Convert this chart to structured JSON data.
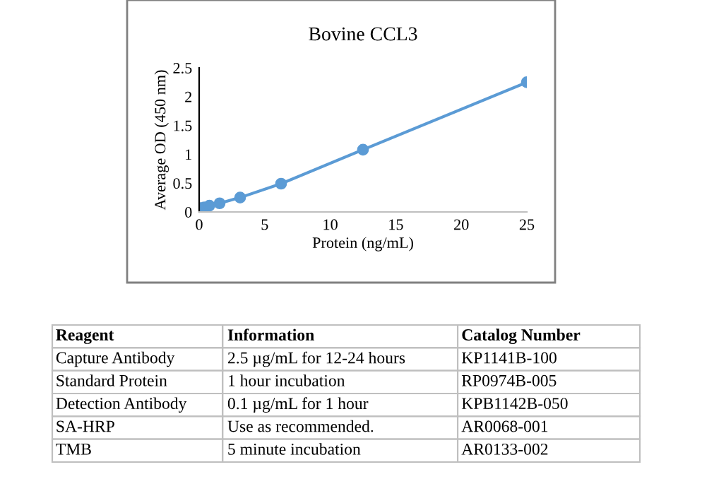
{
  "chart_data": [
    {
      "type": "line",
      "title": "Bovine CCL3",
      "xlabel": "Protein (ng/mL)",
      "ylabel": "Average OD (450 nm)",
      "x": [
        0,
        0.39,
        0.78,
        1.56,
        3.125,
        6.25,
        12.5,
        25
      ],
      "series": [
        {
          "color": "#5b9bd5",
          "values": [
            0.07,
            0.08,
            0.11,
            0.15,
            0.25,
            0.49,
            1.08,
            2.25
          ]
        }
      ],
      "xlim": [
        0,
        25
      ],
      "xticks": [
        0,
        5,
        10,
        15,
        20,
        25
      ],
      "ylim": [
        0,
        2.5
      ],
      "yticks": [
        0,
        0.5,
        1,
        1.5,
        2,
        2.5
      ],
      "grid": false,
      "legend": false,
      "marker": "circle",
      "line_style": "solid"
    },
    {
      "type": "other",
      "annotations": [
        "Reagent",
        "Information",
        "Catalog Number",
        "Capture Antibody",
        "2.5 µg/mL for 12-24 hours",
        "KP1141B-100",
        "Standard Protein",
        "1 hour incubation",
        "RP0974B-005",
        "Detection Antibody",
        "0.1 µg/mL for 1 hour",
        "KPB1142B-050",
        "SA-HRP",
        "Use as recommended.",
        "AR0068-001",
        "TMB",
        "5 minute incubation",
        "AR0133-002"
      ]
    }
  ]
}
